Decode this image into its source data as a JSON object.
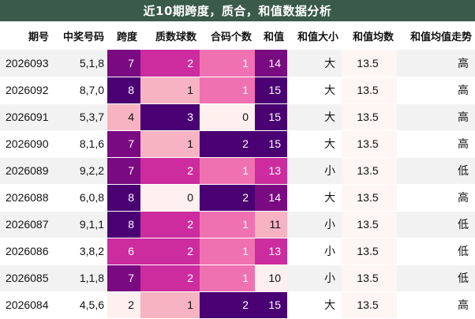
{
  "title": "近10期跨度，质合，和值数据分析",
  "headers": [
    "期号",
    "中奖号码",
    "跨度",
    "质数球数",
    "合码个数",
    "和值",
    "和值大小",
    "和值均数",
    "和值均值走势"
  ],
  "colors": {
    "deep_purple": "#4a0072",
    "purple": "#7a0a82",
    "magenta": "#cc2c9e",
    "pink": "#f071b1",
    "light_pink": "#f8b3c2",
    "pale": "#fdf0ee",
    "title_bg": "#3a5a4a",
    "avg_bg": "#fdf6f2"
  },
  "rows": [
    {
      "period": "2026093",
      "numbers": "5,1,8",
      "span": "7",
      "span_c": "purple",
      "prime": "2",
      "prime_c": "magenta",
      "composite": "1",
      "composite_c": "pink",
      "sum": "14",
      "sum_c": "purple",
      "size": "大",
      "avg": "13.5",
      "trend": "高"
    },
    {
      "period": "2026092",
      "numbers": "8,7,0",
      "span": "8",
      "span_c": "deep_purple",
      "prime": "1",
      "prime_c": "light_pink",
      "composite": "1",
      "composite_c": "pink",
      "sum": "15",
      "sum_c": "deep_purple",
      "size": "大",
      "avg": "13.5",
      "trend": "高"
    },
    {
      "period": "2026091",
      "numbers": "5,3,7",
      "span": "4",
      "span_c": "light_pink",
      "prime": "3",
      "prime_c": "deep_purple",
      "composite": "0",
      "composite_c": "pale",
      "sum": "15",
      "sum_c": "deep_purple",
      "size": "大",
      "avg": "13.5",
      "trend": "高"
    },
    {
      "period": "2026090",
      "numbers": "8,1,6",
      "span": "7",
      "span_c": "purple",
      "prime": "1",
      "prime_c": "light_pink",
      "composite": "2",
      "composite_c": "deep_purple",
      "sum": "15",
      "sum_c": "deep_purple",
      "size": "大",
      "avg": "13.5",
      "trend": "高"
    },
    {
      "period": "2026089",
      "numbers": "9,2,2",
      "span": "7",
      "span_c": "purple",
      "prime": "2",
      "prime_c": "magenta",
      "composite": "1",
      "composite_c": "pink",
      "sum": "13",
      "sum_c": "magenta",
      "size": "小",
      "avg": "13.5",
      "trend": "低"
    },
    {
      "period": "2026088",
      "numbers": "6,0,8",
      "span": "8",
      "span_c": "deep_purple",
      "prime": "0",
      "prime_c": "pale",
      "composite": "2",
      "composite_c": "deep_purple",
      "sum": "14",
      "sum_c": "purple",
      "size": "大",
      "avg": "13.5",
      "trend": "高"
    },
    {
      "period": "2026087",
      "numbers": "9,1,1",
      "span": "8",
      "span_c": "deep_purple",
      "prime": "2",
      "prime_c": "magenta",
      "composite": "1",
      "composite_c": "pink",
      "sum": "11",
      "sum_c": "light_pink",
      "size": "小",
      "avg": "13.5",
      "trend": "低"
    },
    {
      "period": "2026086",
      "numbers": "3,8,2",
      "span": "6",
      "span_c": "magenta",
      "prime": "2",
      "prime_c": "magenta",
      "composite": "1",
      "composite_c": "pink",
      "sum": "13",
      "sum_c": "magenta",
      "size": "小",
      "avg": "13.5",
      "trend": "低"
    },
    {
      "period": "2026085",
      "numbers": "1,1,8",
      "span": "7",
      "span_c": "purple",
      "prime": "2",
      "prime_c": "magenta",
      "composite": "1",
      "composite_c": "pink",
      "sum": "10",
      "sum_c": "pale",
      "size": "小",
      "avg": "13.5",
      "trend": "低"
    },
    {
      "period": "2026084",
      "numbers": "4,5,6",
      "span": "2",
      "span_c": "pale",
      "prime": "1",
      "prime_c": "light_pink",
      "composite": "2",
      "composite_c": "deep_purple",
      "sum": "15",
      "sum_c": "deep_purple",
      "size": "大",
      "avg": "13.5",
      "trend": "高"
    }
  ]
}
